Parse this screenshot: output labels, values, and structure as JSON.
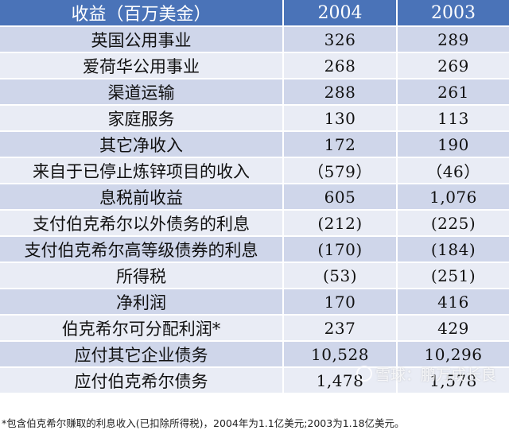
{
  "table": {
    "headers": [
      "收益（百万美金）",
      "2004",
      "2003"
    ],
    "rows": [
      {
        "label": "英国公用事业",
        "y2004": "326",
        "y2003": "289"
      },
      {
        "label": "爱荷华公用事业",
        "y2004": "268",
        "y2003": "269"
      },
      {
        "label": "渠道运输",
        "y2004": "288",
        "y2003": "261"
      },
      {
        "label": "家庭服务",
        "y2004": "130",
        "y2003": "113"
      },
      {
        "label": "其它净收入",
        "y2004": "172",
        "y2003": "190"
      },
      {
        "label": "来自于已停止炼锌项目的收入",
        "y2004": "（579）",
        "y2003": "（46）"
      },
      {
        "label": "息税前收益",
        "y2004": "605",
        "y2003": "1,076"
      },
      {
        "label": "支付伯克希尔以外债务的利息",
        "y2004": "(212)",
        "y2003": "(225)"
      },
      {
        "label": "支付伯克希尔高等级债券的利息",
        "y2004": "(170)",
        "y2003": "(184)"
      },
      {
        "label": "所得税",
        "y2004": "(53)",
        "y2003": "(251)"
      },
      {
        "label": "净利润",
        "y2004": "170",
        "y2003": "416"
      },
      {
        "label": "伯克希尔可分配利润*",
        "y2004": "237",
        "y2003": "429"
      },
      {
        "label": "应付其它企业债务",
        "y2004": "10,528",
        "y2003": "10,296"
      },
      {
        "label": "应付伯克希尔债务",
        "y2004": "1,478",
        "y2003": "1,578"
      }
    ]
  },
  "watermark": "雪球：鹏万成长良",
  "footnote": "*包含伯克希尔赚取的利息收入(已扣除所得税)，2004年为1.1亿美元;2003为1.18亿美元。"
}
